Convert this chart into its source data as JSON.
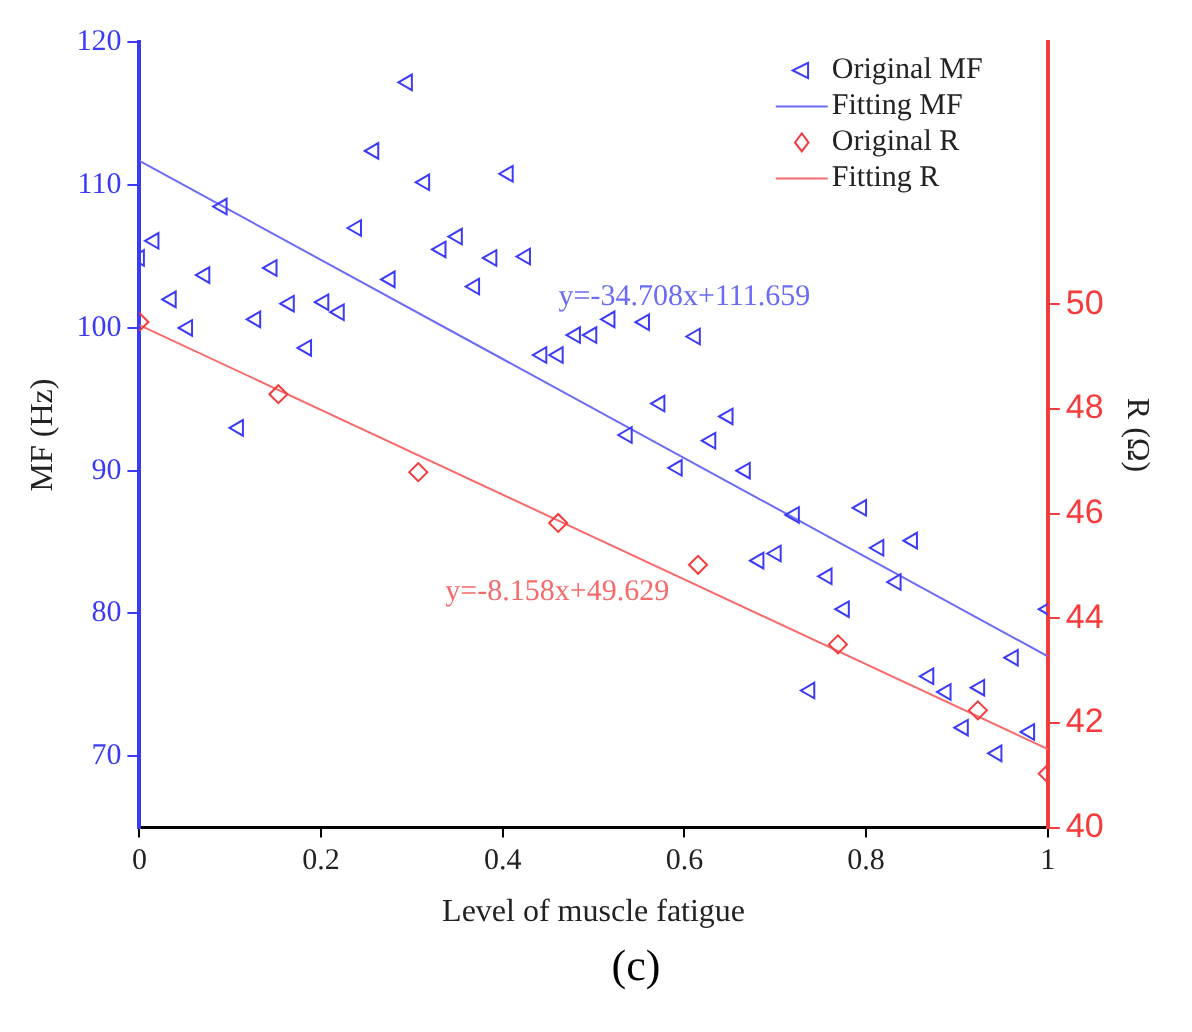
{
  "chart_data": {
    "type": "scatter",
    "xlabel": "Level of muscle fatigue",
    "ylabel": "MF (Hz)",
    "y2label": "R (Ω)",
    "xlim": [
      0,
      1
    ],
    "xticks": [
      0,
      0.2,
      0.4,
      0.6,
      0.8,
      1
    ],
    "ylim": [
      65,
      120
    ],
    "yticks": [
      70,
      80,
      90,
      100,
      110,
      120
    ],
    "y2lim": [
      40,
      55
    ],
    "y2ticks": [
      40,
      42,
      44,
      46,
      48,
      50
    ],
    "grid": false,
    "legend": "top right",
    "series": [
      {
        "name": "Original MF",
        "type": "scatter",
        "marker": "triangle",
        "color": "#3b3bf5",
        "x": [
          0,
          0.016,
          0.035,
          0.053,
          0.072,
          0.091,
          0.109,
          0.128,
          0.146,
          0.165,
          0.184,
          0.203,
          0.22,
          0.239,
          0.258,
          0.276,
          0.295,
          0.314,
          0.332,
          0.35,
          0.369,
          0.388,
          0.406,
          0.425,
          0.443,
          0.461,
          0.48,
          0.498,
          0.518,
          0.537,
          0.556,
          0.573,
          0.592,
          0.612,
          0.629,
          0.648,
          0.667,
          0.682,
          0.701,
          0.721,
          0.738,
          0.757,
          0.776,
          0.795,
          0.814,
          0.833,
          0.851,
          0.869,
          0.888,
          0.907,
          0.925,
          0.944,
          0.962,
          0.98,
          1.0
        ],
        "values": [
          104.9,
          106.1,
          102.0,
          100.0,
          103.7,
          108.5,
          93.0,
          100.6,
          104.2,
          101.7,
          98.6,
          101.8,
          101.1,
          107.0,
          112.4,
          103.4,
          117.2,
          110.2,
          105.5,
          106.4,
          102.9,
          104.9,
          110.8,
          105.0,
          98.1,
          98.1,
          99.5,
          99.5,
          100.6,
          92.5,
          100.4,
          94.7,
          90.2,
          99.4,
          92.1,
          93.8,
          90.0,
          83.7,
          84.2,
          86.9,
          74.6,
          82.6,
          80.3,
          87.4,
          84.6,
          82.2,
          85.1,
          75.6,
          74.5,
          72.0,
          74.8,
          70.2,
          76.9,
          71.7,
          80.3
        ]
      },
      {
        "name": "Fitting MF",
        "type": "line",
        "marker": "none",
        "color": "#6b6bf5",
        "x": [
          0,
          1
        ],
        "values": [
          111.7,
          77.0
        ]
      },
      {
        "name": "Original R",
        "type": "scatter",
        "marker": "diamond",
        "axis": "y2",
        "color": "#f53b3b",
        "x": [
          0,
          0.153,
          0.307,
          0.461,
          0.615,
          0.769,
          0.923,
          1.0
        ],
        "values": [
          49.66,
          48.28,
          46.79,
          45.82,
          45.02,
          43.5,
          42.24,
          41.03
        ]
      },
      {
        "name": "Fitting R",
        "type": "line",
        "marker": "none",
        "axis": "y2",
        "color": "#f56b6b",
        "x": [
          0,
          1
        ],
        "values": [
          49.6,
          41.5
        ]
      }
    ],
    "annotations": [
      "y=-34.708x+111.659",
      "y=-8.158x+49.629",
      "(c)"
    ]
  }
}
